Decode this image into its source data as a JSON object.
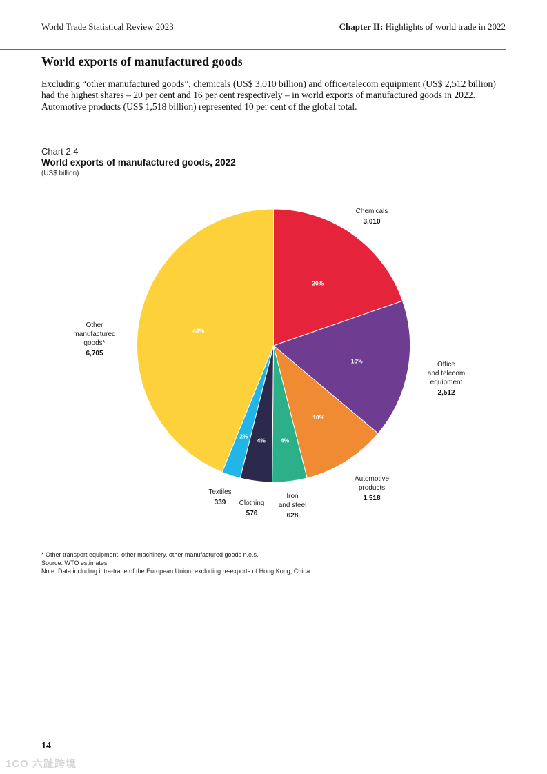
{
  "header": {
    "left": "World Trade Statistical Review 2023",
    "right_bold": "Chapter II:",
    "right_rest": " Highlights of world trade in 2022"
  },
  "section_title": "World exports of manufactured goods",
  "intro": "Excluding “other manufactured goods”, chemicals (US$ 3,010 billion) and office/telecom equipment (US$ 2,512 billion) had the highest shares – 20 per cent and 16 per cent respectively – in world exports of manufactured goods in 2022. Automotive products (US$ 1,518 billion) represented 10 per cent of the global total.",
  "chart_meta": {
    "number": "Chart 2.4",
    "title": "World exports of manufactured goods, 2022",
    "unit": "(US$ billion)"
  },
  "chart_data": {
    "type": "pie",
    "title": "World exports of manufactured goods, 2022",
    "unit": "(US$ billion)",
    "start_angle_deg": 0,
    "direction": "clockwise",
    "slices": [
      {
        "label_lines": [
          "Chemicals"
        ],
        "value_label": "3,010",
        "value": 3010,
        "pct_label": "20%",
        "color": "#e5243b"
      },
      {
        "label_lines": [
          "Office",
          "and telecom",
          "equipment"
        ],
        "value_label": "2,512",
        "value": 2512,
        "pct_label": "16%",
        "color": "#6e3d91"
      },
      {
        "label_lines": [
          "Automotive",
          "products"
        ],
        "value_label": "1,518",
        "value": 1518,
        "pct_label": "10%",
        "color": "#f08a33"
      },
      {
        "label_lines": [
          "Iron",
          "and steel"
        ],
        "value_label": "628",
        "value": 628,
        "pct_label": "4%",
        "color": "#2bb08a"
      },
      {
        "label_lines": [
          "Clothing"
        ],
        "value_label": "576",
        "value": 576,
        "pct_label": "4%",
        "color": "#2b2a4c"
      },
      {
        "label_lines": [
          "Textiles"
        ],
        "value_label": "339",
        "value": 339,
        "pct_label": "2%",
        "color": "#22b5e8"
      },
      {
        "label_lines": [
          "Other",
          "manufactured",
          "goods*"
        ],
        "value_label": "6,705",
        "value": 6705,
        "pct_label": "44%",
        "color": "#fdd13a"
      }
    ]
  },
  "notes": {
    "footnote": "* Other transport equipment, other machinery, other manufactured goods n.e.s.",
    "source": "Source: WTO estimates.",
    "note": "Note: Data including intra-trade of the European Union, excluding re-exports of Hong Kong, China."
  },
  "page_number": "14",
  "watermark": "1CO 六趾跨境"
}
